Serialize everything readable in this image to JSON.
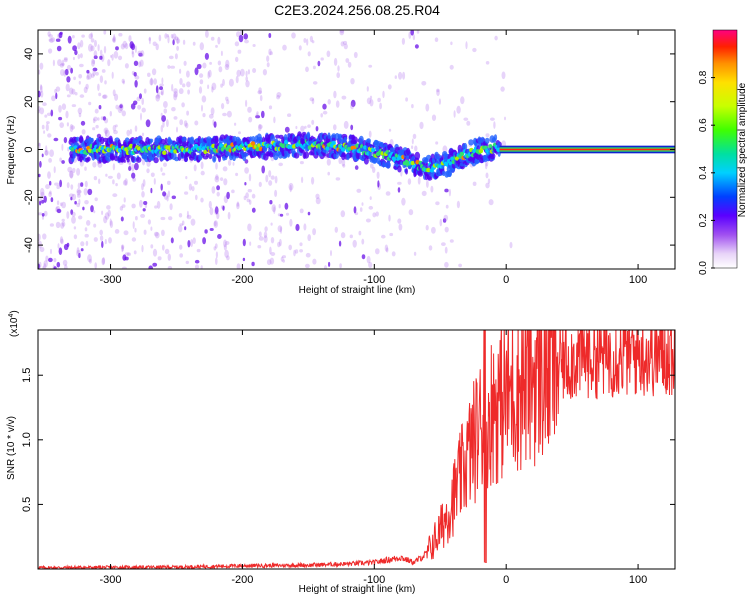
{
  "title": "C2E3.2024.256.08.25.R04",
  "chart_data": [
    {
      "type": "heatmap",
      "name": "spectrogram",
      "xlabel": "Height of straight line (km)",
      "ylabel": "Frequency (Hz)",
      "xlim": [
        -355,
        128
      ],
      "ylim": [
        -50,
        50
      ],
      "xticks": [
        -300,
        -200,
        -100,
        0,
        100
      ],
      "yticks": [
        -40,
        -20,
        0,
        20,
        40
      ],
      "ridge": {
        "x": [
          -330,
          -300,
          -250,
          -200,
          -150,
          -120,
          -100,
          -80,
          -60,
          -45,
          -35,
          -25,
          -15,
          -5,
          0,
          128
        ],
        "frequency_hz": [
          0,
          0,
          0,
          1,
          2,
          1,
          -1,
          -4,
          -8,
          -6,
          -3,
          -1,
          0,
          1,
          0,
          0
        ]
      },
      "colorbar": {
        "label": "Normalized spectral amplitude",
        "range": [
          0,
          1
        ],
        "ticks": [
          "0.0",
          "0.2",
          "0.4",
          "0.6",
          "0.8"
        ]
      }
    },
    {
      "type": "line",
      "name": "snr",
      "xlabel": "Height of straight line (km)",
      "ylabel": "SNR (10 * v/v)",
      "ymultiplier": "(x10",
      "ymultiplier_exp": "4",
      "ymultiplier_close": ")",
      "xlim": [
        -355,
        128
      ],
      "ylim": [
        0,
        1.85
      ],
      "xticks": [
        -300,
        -200,
        -100,
        0,
        100
      ],
      "yticks": [
        0.5,
        1.0,
        1.5
      ],
      "ytick_labels": [
        "0.5",
        "1.0",
        "1.5"
      ],
      "color": "#ee2a2a",
      "trend": {
        "x": [
          -355,
          -250,
          -200,
          -150,
          -120,
          -100,
          -90,
          -80,
          -70,
          -60,
          -50,
          -40,
          -30,
          -20,
          -10,
          0,
          20,
          40,
          60,
          100,
          128
        ],
        "y": [
          0.01,
          0.015,
          0.025,
          0.03,
          0.04,
          0.05,
          0.07,
          0.09,
          0.05,
          0.12,
          0.3,
          0.55,
          0.85,
          1.1,
          1.25,
          1.35,
          1.5,
          1.6,
          1.65,
          1.67,
          1.66
        ]
      }
    }
  ]
}
